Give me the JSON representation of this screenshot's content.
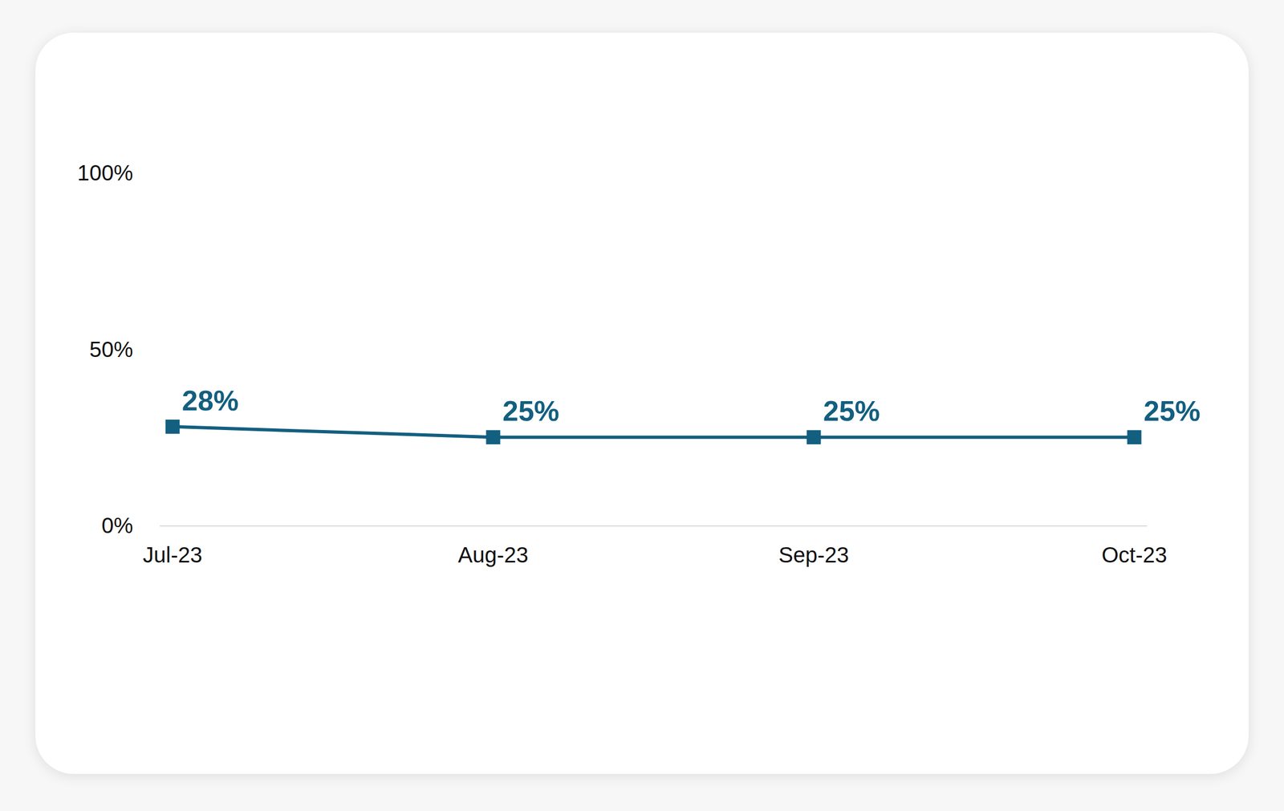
{
  "chart_data": {
    "type": "line",
    "categories": [
      "Jul-23",
      "Aug-23",
      "Sep-23",
      "Oct-23"
    ],
    "values": [
      28,
      25,
      25,
      25
    ],
    "value_labels": [
      "28%",
      "25%",
      "25%",
      "25%"
    ],
    "color": "#135f80",
    "marker": "square",
    "ylim": [
      0,
      100
    ],
    "yticks": [
      {
        "value": 0,
        "label": "0%"
      },
      {
        "value": 50,
        "label": "50%"
      },
      {
        "value": 100,
        "label": "100%"
      }
    ],
    "grid": false,
    "data_labels": true
  }
}
